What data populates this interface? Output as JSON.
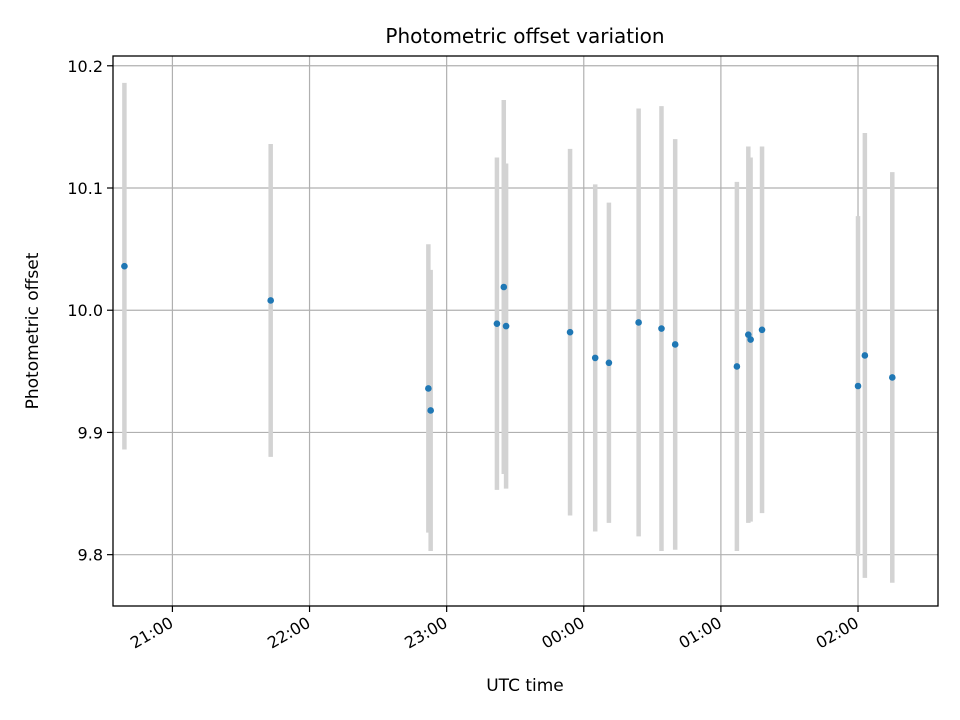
{
  "chart_data": {
    "type": "scatter",
    "title": "Photometric offset variation",
    "xlabel": "UTC time",
    "ylabel": "Photometric offset",
    "x_axis_type": "time",
    "xlim": [
      "20:34",
      "02:35"
    ],
    "ylim": [
      9.758,
      10.208
    ],
    "grid": true,
    "x_ticks": [
      "21:00",
      "22:00",
      "23:00",
      "00:00",
      "01:00",
      "02:00"
    ],
    "y_ticks": [
      "9.8",
      "9.9",
      "10.0",
      "10.1",
      "10.2"
    ],
    "colors": {
      "points": "#1f77b4",
      "errorbars": "#d3d3d3"
    },
    "points": [
      {
        "t": "20:39",
        "y": 10.036,
        "err": 0.15
      },
      {
        "t": "21:43",
        "y": 10.008,
        "err": 0.128
      },
      {
        "t": "22:52",
        "y": 9.936,
        "err": 0.118
      },
      {
        "t": "22:53",
        "y": 9.918,
        "err": 0.115
      },
      {
        "t": "23:22",
        "y": 9.989,
        "err": 0.136
      },
      {
        "t": "23:25",
        "y": 10.019,
        "err": 0.153
      },
      {
        "t": "23:26",
        "y": 9.987,
        "err": 0.133
      },
      {
        "t": "23:54",
        "y": 9.982,
        "err": 0.15
      },
      {
        "t": "00:05",
        "y": 9.961,
        "err": 0.142
      },
      {
        "t": "00:11",
        "y": 9.957,
        "err": 0.131
      },
      {
        "t": "00:24",
        "y": 9.99,
        "err": 0.175
      },
      {
        "t": "00:34",
        "y": 9.985,
        "err": 0.182
      },
      {
        "t": "00:40",
        "y": 9.972,
        "err": 0.168
      },
      {
        "t": "01:07",
        "y": 9.954,
        "err": 0.151
      },
      {
        "t": "01:12",
        "y": 9.98,
        "err": 0.154
      },
      {
        "t": "01:13",
        "y": 9.976,
        "err": 0.149
      },
      {
        "t": "01:18",
        "y": 9.984,
        "err": 0.15
      },
      {
        "t": "02:00",
        "y": 9.938,
        "err": 0.139
      },
      {
        "t": "02:03",
        "y": 9.963,
        "err": 0.182
      },
      {
        "t": "02:15",
        "y": 9.945,
        "err": 0.168
      }
    ]
  }
}
